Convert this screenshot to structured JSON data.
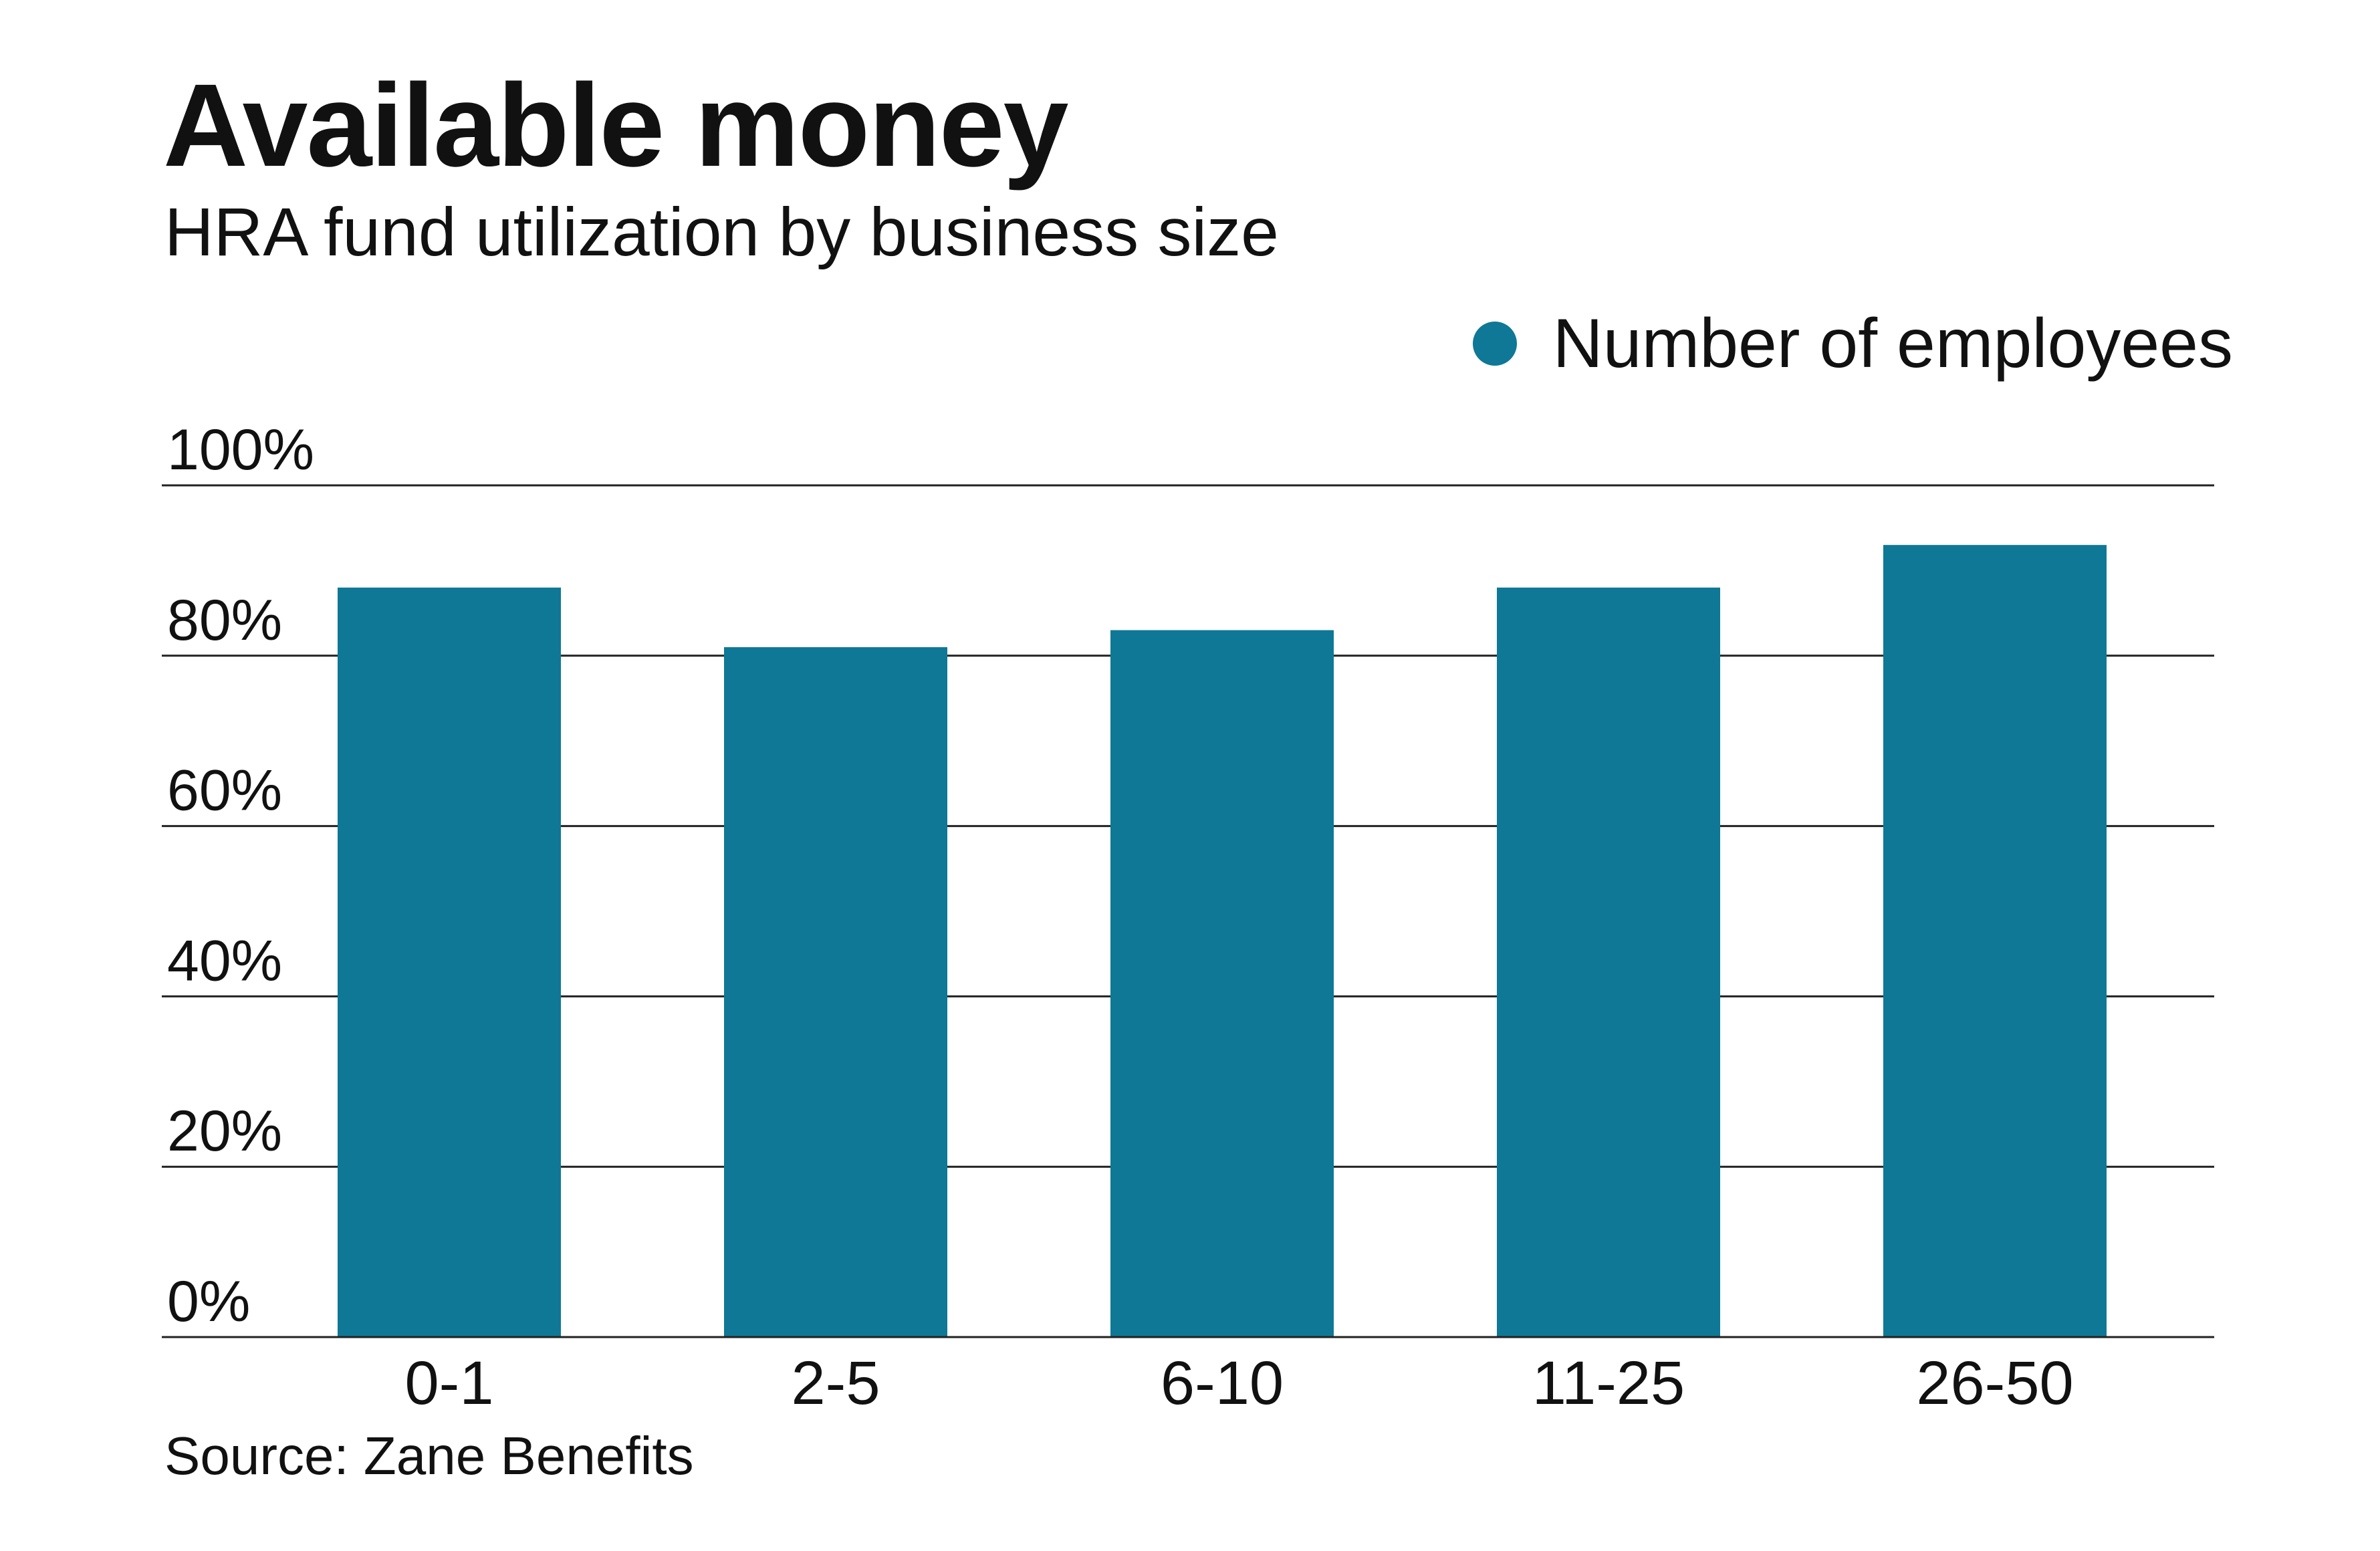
{
  "colors": {
    "bar": "#0e7896",
    "grid": "#222222",
    "text": "#111111"
  },
  "chart_data": {
    "type": "bar",
    "title": "Available money",
    "subtitle": "HRA fund utilization by business size",
    "legend": {
      "label": "Number of employees",
      "placement": "top-right"
    },
    "categories": [
      "0-1",
      "2-5",
      "6-10",
      "11-25",
      "26-50"
    ],
    "series": [
      {
        "name": "Number of employees",
        "values": [
          88,
          81,
          83,
          88,
          93
        ]
      }
    ],
    "y_ticks": [
      "0%",
      "20%",
      "40%",
      "60%",
      "80%",
      "100%"
    ],
    "ylim": [
      0,
      100
    ],
    "grid": true,
    "source": "Source: Zane Benefits"
  }
}
